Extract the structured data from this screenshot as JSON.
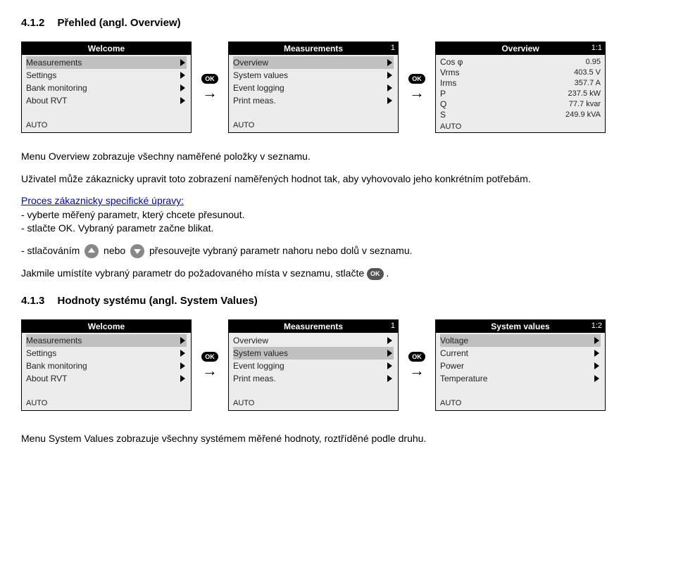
{
  "section1": {
    "num": "4.1.2",
    "title": "Přehled (angl. Overview)"
  },
  "section2": {
    "num": "4.1.3",
    "title": "Hodnoty systému (angl. System Values)"
  },
  "ok_label": "OK",
  "screens_a": {
    "welcome": {
      "title": "Welcome",
      "items": [
        {
          "label": "Measurements",
          "selected": true,
          "arrow": true
        },
        {
          "label": "Settings",
          "arrow": true
        },
        {
          "label": "Bank monitoring",
          "arrow": true
        },
        {
          "label": "About RVT",
          "arrow": true
        }
      ],
      "footer": "AUTO"
    },
    "measurements": {
      "title": "Measurements",
      "corner_r": "1",
      "items": [
        {
          "label": "Overview",
          "selected": true,
          "arrow": true
        },
        {
          "label": "System values",
          "arrow": true
        },
        {
          "label": "Event logging",
          "arrow": true
        },
        {
          "label": "Print meas.",
          "arrow": true
        }
      ],
      "footer": "AUTO"
    },
    "overview": {
      "title": "Overview",
      "corner_r": "1:1",
      "rows": [
        {
          "label": "Cos φ",
          "val": "0.95"
        },
        {
          "label": "Vrms",
          "val": "403.5 V"
        },
        {
          "label": "Irms",
          "val": "357.7 A"
        },
        {
          "label": "P",
          "val": "237.5 kW"
        },
        {
          "label": "Q",
          "val": "77.7 kvar"
        },
        {
          "label": "S",
          "val": "249.9 kVA"
        }
      ],
      "footer": "AUTO"
    }
  },
  "screens_b": {
    "welcome": {
      "title": "Welcome",
      "items": [
        {
          "label": "Measurements",
          "selected": true,
          "arrow": true
        },
        {
          "label": "Settings",
          "arrow": true
        },
        {
          "label": "Bank monitoring",
          "arrow": true
        },
        {
          "label": "About RVT",
          "arrow": true
        }
      ],
      "footer": "AUTO"
    },
    "measurements": {
      "title": "Measurements",
      "corner_r": "1",
      "items": [
        {
          "label": "Overview",
          "arrow": true
        },
        {
          "label": "System values",
          "selected": true,
          "arrow": true
        },
        {
          "label": "Event logging",
          "arrow": true
        },
        {
          "label": "Print meas.",
          "arrow": true
        }
      ],
      "footer": "AUTO"
    },
    "sysvalues": {
      "title": "System values",
      "corner_r": "1:2",
      "items": [
        {
          "label": "Voltage",
          "selected": true,
          "arrow": true
        },
        {
          "label": "Current",
          "arrow": true
        },
        {
          "label": "Power",
          "arrow": true
        },
        {
          "label": "Temperature",
          "arrow": true
        }
      ],
      "footer": "AUTO"
    }
  },
  "text": {
    "p1": "Menu Overview  zobrazuje všechny naměřené položky v seznamu.",
    "p2": "Uživatel může zákaznicky upravit toto zobrazení naměřených hodnot tak, aby vyhovovalo jeho konkrétním potřebám.",
    "p3_link": "Proces zákaznicky specifické úpravy:",
    "p3_a": "- vyberte měřený parametr, který chcete přesunout.",
    "p3_b": "- stlačte OK. Vybraný parametr začne blikat.",
    "p4_a": "- stlačováním ",
    "p4_b": " nebo ",
    "p4_c": " přesouvejte vybraný parametr nahoru nebo dolů v seznamu.",
    "p5_a": "Jakmile umístíte vybraný parametr do požadovaného místa v seznamu, stlačte ",
    "p5_b": ".",
    "p6": "Menu System Values zobrazuje všechny systémem měřené hodnoty, roztříděné podle druhu."
  }
}
